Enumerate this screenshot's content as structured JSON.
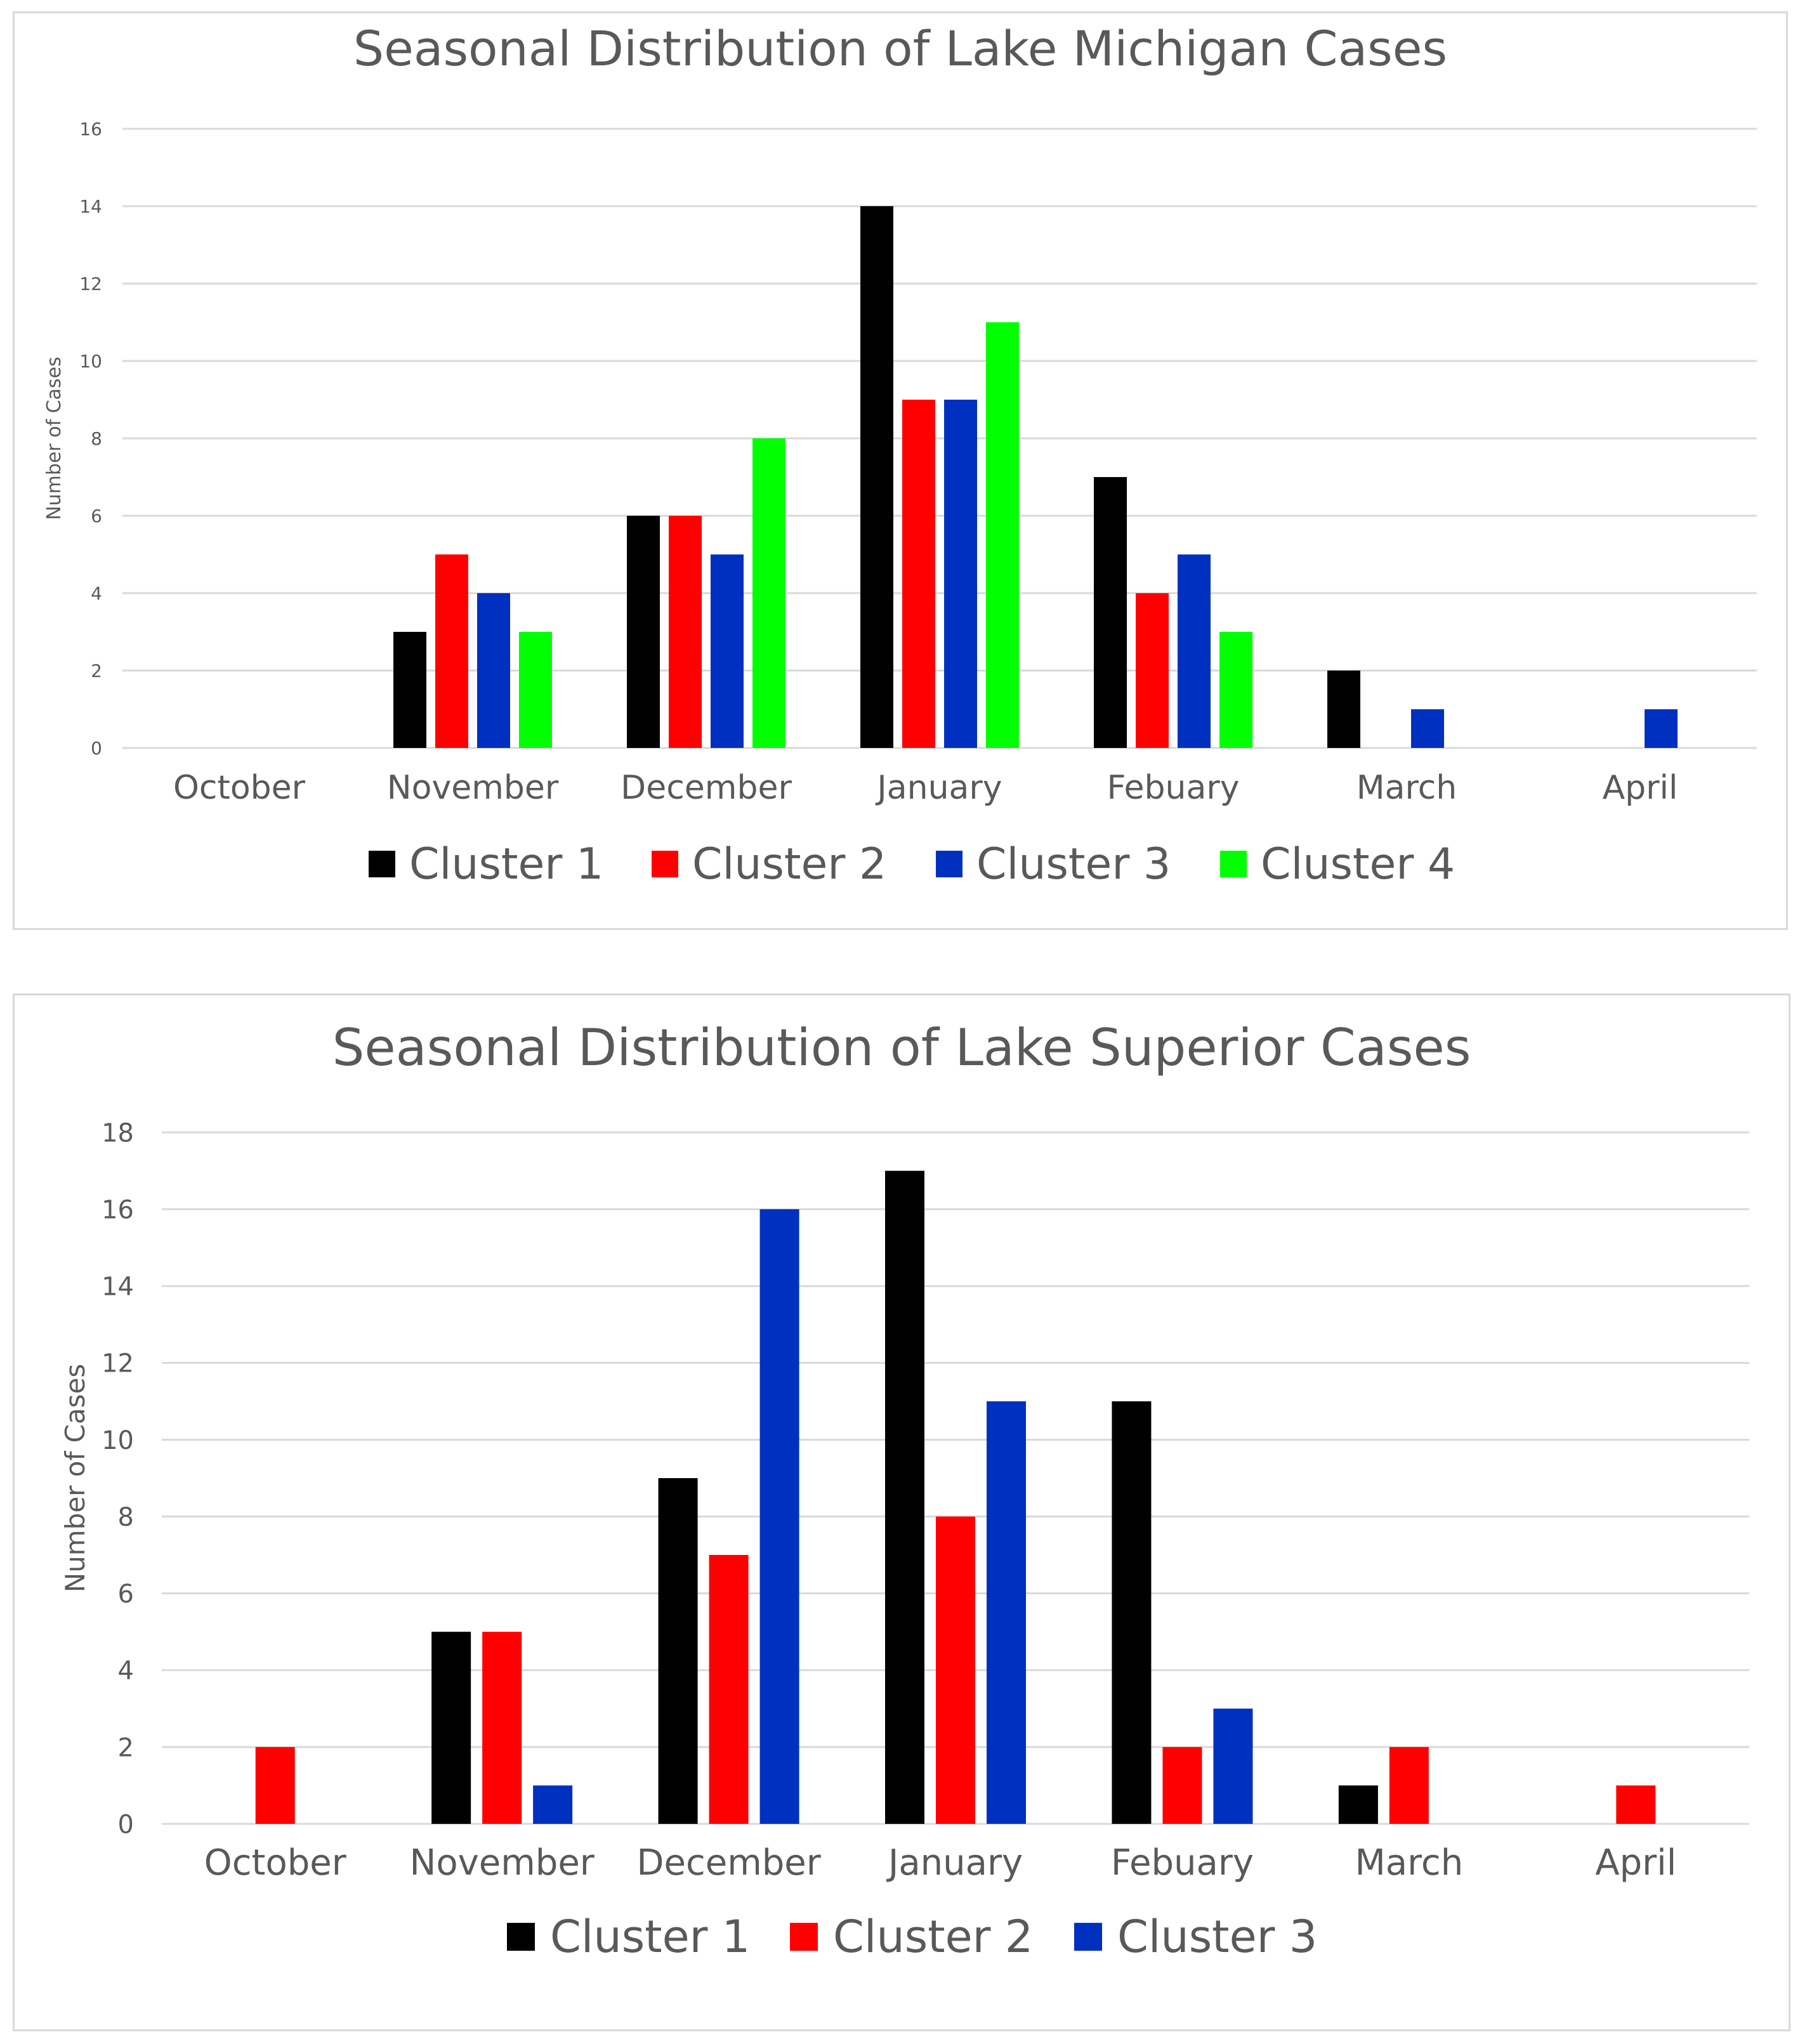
{
  "chart_data": [
    {
      "type": "bar",
      "title": "Seasonal Distribution of Lake Michigan Cases",
      "xlabel": "",
      "ylabel": "Number of Cases",
      "categories": [
        "October",
        "November",
        "December",
        "January",
        "Febuary",
        "March",
        "April"
      ],
      "series": [
        {
          "name": "Cluster 1",
          "color": "#000000",
          "values": [
            null,
            3,
            6,
            14,
            7,
            2,
            null
          ]
        },
        {
          "name": "Cluster 2",
          "color": "#ff0000",
          "values": [
            null,
            5,
            6,
            9,
            4,
            null,
            null
          ]
        },
        {
          "name": "Cluster 3",
          "color": "#0030c0",
          "values": [
            null,
            4,
            5,
            9,
            5,
            1,
            1
          ]
        },
        {
          "name": "Cluster 4",
          "color": "#00ff00",
          "values": [
            null,
            3,
            8,
            11,
            3,
            null,
            null
          ]
        }
      ],
      "ylim": [
        0,
        16
      ],
      "yticks": [
        0,
        2,
        4,
        6,
        8,
        10,
        12,
        14,
        16
      ],
      "grid": true,
      "legend": "bottom"
    },
    {
      "type": "bar",
      "title": "Seasonal Distribution of Lake Superior Cases",
      "xlabel": "",
      "ylabel": "Number of Cases",
      "categories": [
        "October",
        "November",
        "December",
        "January",
        "Febuary",
        "March",
        "April"
      ],
      "series": [
        {
          "name": "Cluster 1",
          "color": "#000000",
          "values": [
            null,
            5,
            9,
            17,
            11,
            1,
            null
          ]
        },
        {
          "name": "Cluster 2",
          "color": "#ff0000",
          "values": [
            2,
            5,
            7,
            8,
            2,
            2,
            1
          ]
        },
        {
          "name": "Cluster 3",
          "color": "#0030c0",
          "values": [
            null,
            1,
            16,
            11,
            3,
            null,
            null
          ]
        }
      ],
      "ylim": [
        0,
        18
      ],
      "yticks": [
        0,
        2,
        4,
        6,
        8,
        10,
        12,
        14,
        16,
        18
      ],
      "grid": true,
      "legend": "bottom"
    }
  ]
}
